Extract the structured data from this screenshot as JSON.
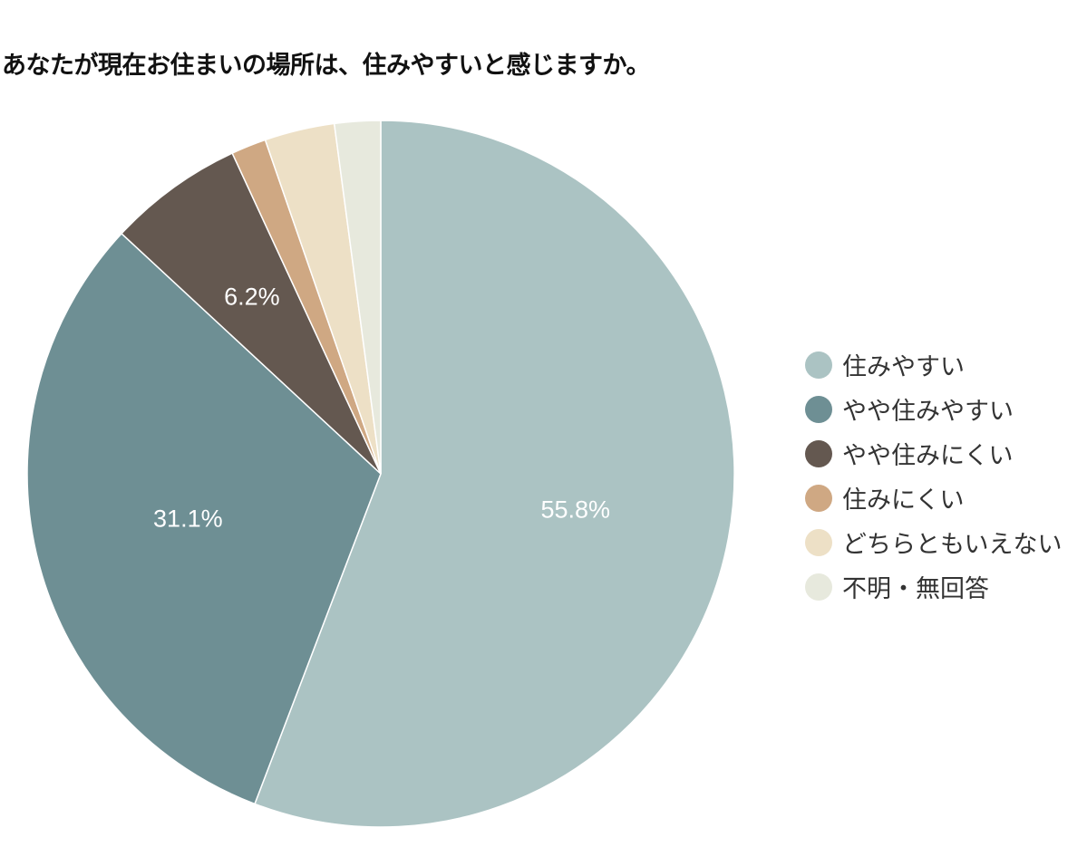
{
  "chart_data": {
    "type": "pie",
    "title": "あなたが現在お住まいの場所は、住みやすいと感じますか。",
    "categories": [
      "住みやすい",
      "やや住みやすい",
      "やや住みにくい",
      "住みにくい",
      "どちらともいえない",
      "不明・無回答"
    ],
    "values": [
      55.8,
      31.1,
      6.2,
      1.6,
      3.2,
      2.1
    ],
    "unit": "%",
    "colors": [
      "#abc3c3",
      "#6e8f94",
      "#645850",
      "#cfa883",
      "#ede0c6",
      "#e7e9dd"
    ],
    "data_labels": [
      "55.8%",
      "31.1%",
      "6.2%",
      "",
      "",
      ""
    ],
    "slice_order": "clockwise from top",
    "legend_position": "right"
  }
}
